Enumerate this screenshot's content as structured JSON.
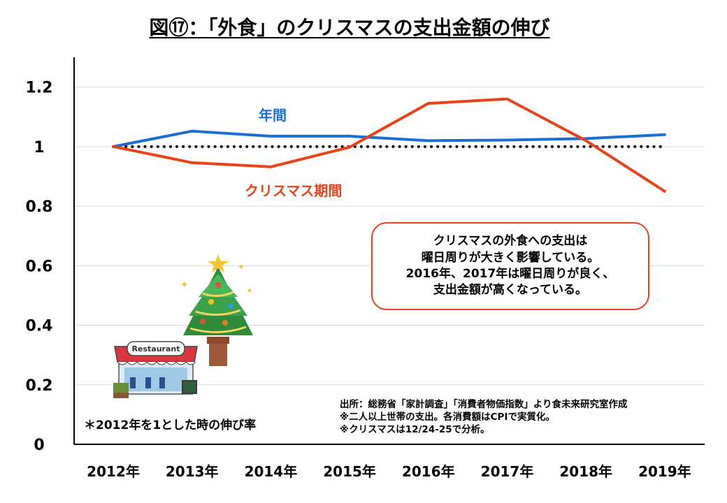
{
  "title": "図⑰：「外食」のクリスマスの支出金額の伸び",
  "chart_data": {
    "type": "line",
    "categories": [
      "2012年",
      "2013年",
      "2014年",
      "2015年",
      "2016年",
      "2017年",
      "2018年",
      "2019年"
    ],
    "series": [
      {
        "name": "年間",
        "color": "#1a6fd6",
        "values": [
          1.0,
          1.052,
          1.035,
          1.035,
          1.02,
          1.022,
          1.027,
          1.04
        ]
      },
      {
        "name": "クリスマス期間",
        "color": "#e8431a",
        "values": [
          1.0,
          0.946,
          0.932,
          0.998,
          1.145,
          1.16,
          1.02,
          0.85
        ]
      }
    ],
    "reference_line": {
      "value": 1,
      "style": "dotted",
      "color": "#000000"
    },
    "yticks": [
      "0",
      "0.2",
      "0.4",
      "0.6",
      "0.8",
      "1",
      "1.2"
    ],
    "ylim": [
      0,
      1.3
    ],
    "grid": true
  },
  "callout": {
    "lines": [
      "クリスマスの外食への支出は",
      "曜日周りが大きく影響している。",
      "2016年、2017年は曜日周りが良く、",
      "支出金額が高くなっている。"
    ]
  },
  "note": "＊2012年を1とした時の伸び率",
  "source": [
    "出所：総務省「家計調査」「消費者物価指数」より食未来研究室作成",
    "※二人以上世帯の支出。各消費額はCPIで実質化。",
    "※クリスマスは12/24-25で分析。"
  ],
  "illustrations": {
    "restaurant_sign": "Restaurant",
    "tree_icon": "christmas-tree-icon",
    "restaurant_icon": "restaurant-storefront-icon"
  }
}
